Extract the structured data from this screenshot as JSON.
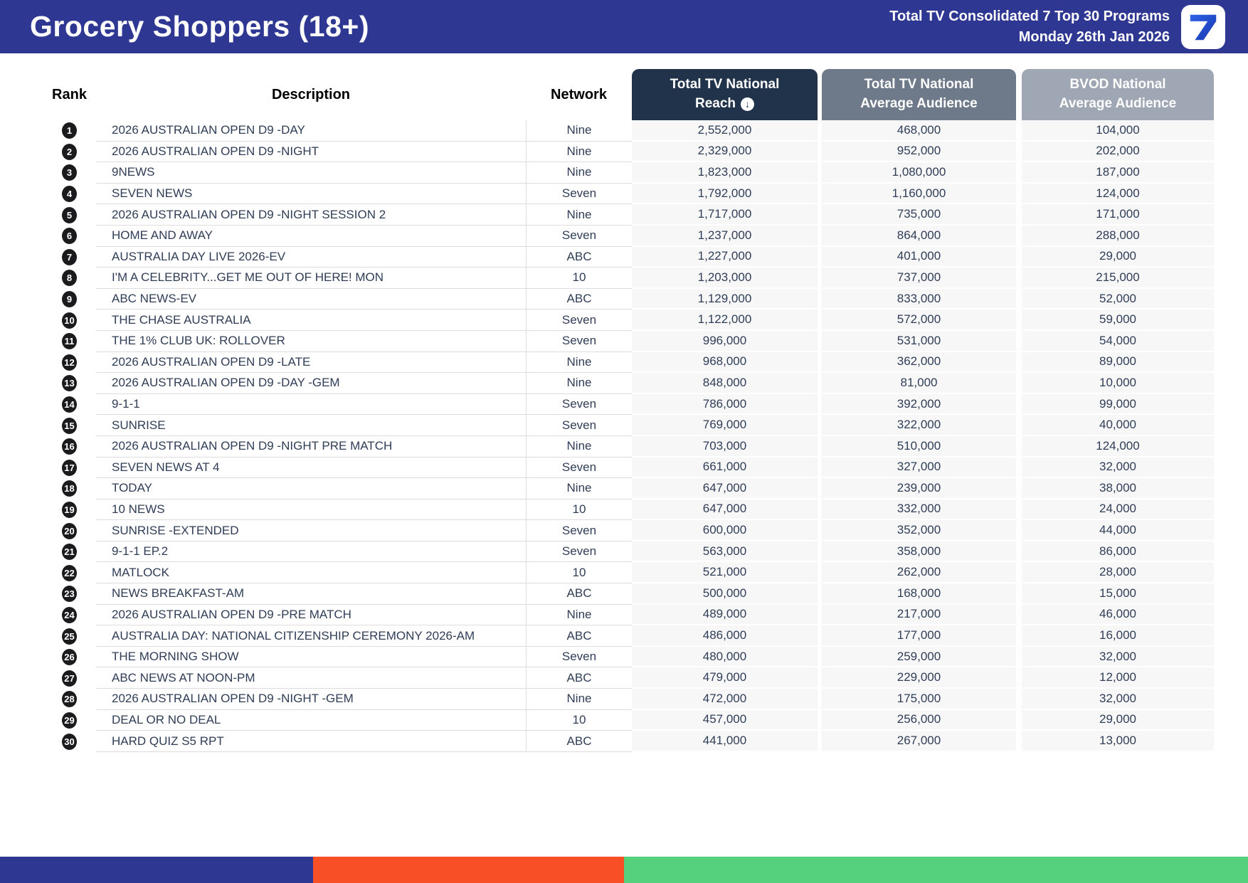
{
  "header": {
    "title": "Grocery Shoppers (18+)",
    "subtitle_line1": "Total TV Consolidated 7 Top 30 Programs",
    "subtitle_line2": "Monday 26th Jan 2026",
    "logo_glyph": "7"
  },
  "table": {
    "header": {
      "rank": "Rank",
      "description": "Description",
      "network": "Network",
      "reach_line1": "Total TV National",
      "reach_line2": "Reach",
      "reach_sort_icon_glyph": "↓",
      "avg_line1": "Total TV National",
      "avg_line2": "Average Audience",
      "bvod_line1": "BVOD National",
      "bvod_line2": "Average Audience"
    },
    "rows": [
      {
        "rank": "1",
        "description": "2026 AUSTRALIAN OPEN D9 -DAY",
        "network": "Nine",
        "reach": "2,552,000",
        "avg": "468,000",
        "bvod": "104,000"
      },
      {
        "rank": "2",
        "description": "2026 AUSTRALIAN OPEN D9 -NIGHT",
        "network": "Nine",
        "reach": "2,329,000",
        "avg": "952,000",
        "bvod": "202,000"
      },
      {
        "rank": "3",
        "description": "9NEWS",
        "network": "Nine",
        "reach": "1,823,000",
        "avg": "1,080,000",
        "bvod": "187,000"
      },
      {
        "rank": "4",
        "description": "SEVEN NEWS",
        "network": "Seven",
        "reach": "1,792,000",
        "avg": "1,160,000",
        "bvod": "124,000"
      },
      {
        "rank": "5",
        "description": "2026 AUSTRALIAN OPEN D9 -NIGHT SESSION 2",
        "network": "Nine",
        "reach": "1,717,000",
        "avg": "735,000",
        "bvod": "171,000"
      },
      {
        "rank": "6",
        "description": "HOME AND AWAY",
        "network": "Seven",
        "reach": "1,237,000",
        "avg": "864,000",
        "bvod": "288,000"
      },
      {
        "rank": "7",
        "description": "AUSTRALIA DAY LIVE 2026-EV",
        "network": "ABC",
        "reach": "1,227,000",
        "avg": "401,000",
        "bvod": "29,000"
      },
      {
        "rank": "8",
        "description": "I'M A CELEBRITY...GET ME OUT OF HERE! MON",
        "network": "10",
        "reach": "1,203,000",
        "avg": "737,000",
        "bvod": "215,000"
      },
      {
        "rank": "9",
        "description": "ABC NEWS-EV",
        "network": "ABC",
        "reach": "1,129,000",
        "avg": "833,000",
        "bvod": "52,000"
      },
      {
        "rank": "10",
        "description": "THE CHASE AUSTRALIA",
        "network": "Seven",
        "reach": "1,122,000",
        "avg": "572,000",
        "bvod": "59,000"
      },
      {
        "rank": "11",
        "description": "THE 1% CLUB UK: ROLLOVER",
        "network": "Seven",
        "reach": "996,000",
        "avg": "531,000",
        "bvod": "54,000"
      },
      {
        "rank": "12",
        "description": "2026 AUSTRALIAN OPEN D9 -LATE",
        "network": "Nine",
        "reach": "968,000",
        "avg": "362,000",
        "bvod": "89,000"
      },
      {
        "rank": "13",
        "description": "2026 AUSTRALIAN OPEN D9 -DAY -GEM",
        "network": "Nine",
        "reach": "848,000",
        "avg": "81,000",
        "bvod": "10,000"
      },
      {
        "rank": "14",
        "description": "9-1-1",
        "network": "Seven",
        "reach": "786,000",
        "avg": "392,000",
        "bvod": "99,000"
      },
      {
        "rank": "15",
        "description": "SUNRISE",
        "network": "Seven",
        "reach": "769,000",
        "avg": "322,000",
        "bvod": "40,000"
      },
      {
        "rank": "16",
        "description": "2026 AUSTRALIAN OPEN D9 -NIGHT PRE MATCH",
        "network": "Nine",
        "reach": "703,000",
        "avg": "510,000",
        "bvod": "124,000"
      },
      {
        "rank": "17",
        "description": "SEVEN NEWS AT 4",
        "network": "Seven",
        "reach": "661,000",
        "avg": "327,000",
        "bvod": "32,000"
      },
      {
        "rank": "18",
        "description": "TODAY",
        "network": "Nine",
        "reach": "647,000",
        "avg": "239,000",
        "bvod": "38,000"
      },
      {
        "rank": "19",
        "description": "10 NEWS",
        "network": "10",
        "reach": "647,000",
        "avg": "332,000",
        "bvod": "24,000"
      },
      {
        "rank": "20",
        "description": "SUNRISE -EXTENDED",
        "network": "Seven",
        "reach": "600,000",
        "avg": "352,000",
        "bvod": "44,000"
      },
      {
        "rank": "21",
        "description": "9-1-1 EP.2",
        "network": "Seven",
        "reach": "563,000",
        "avg": "358,000",
        "bvod": "86,000"
      },
      {
        "rank": "22",
        "description": "MATLOCK",
        "network": "10",
        "reach": "521,000",
        "avg": "262,000",
        "bvod": "28,000"
      },
      {
        "rank": "23",
        "description": "NEWS BREAKFAST-AM",
        "network": "ABC",
        "reach": "500,000",
        "avg": "168,000",
        "bvod": "15,000"
      },
      {
        "rank": "24",
        "description": "2026 AUSTRALIAN OPEN D9 -PRE MATCH",
        "network": "Nine",
        "reach": "489,000",
        "avg": "217,000",
        "bvod": "46,000"
      },
      {
        "rank": "25",
        "description": "AUSTRALIA DAY: NATIONAL CITIZENSHIP CEREMONY 2026-AM",
        "network": "ABC",
        "reach": "486,000",
        "avg": "177,000",
        "bvod": "16,000"
      },
      {
        "rank": "26",
        "description": "THE MORNING SHOW",
        "network": "Seven",
        "reach": "480,000",
        "avg": "259,000",
        "bvod": "32,000"
      },
      {
        "rank": "27",
        "description": "ABC NEWS AT NOON-PM",
        "network": "ABC",
        "reach": "479,000",
        "avg": "229,000",
        "bvod": "12,000"
      },
      {
        "rank": "28",
        "description": "2026 AUSTRALIAN OPEN D9 -NIGHT -GEM",
        "network": "Nine",
        "reach": "472,000",
        "avg": "175,000",
        "bvod": "32,000"
      },
      {
        "rank": "29",
        "description": "DEAL OR NO DEAL",
        "network": "10",
        "reach": "457,000",
        "avg": "256,000",
        "bvod": "29,000"
      },
      {
        "rank": "30",
        "description": "HARD QUIZ S5 RPT",
        "network": "ABC",
        "reach": "441,000",
        "avg": "267,000",
        "bvod": "13,000"
      }
    ]
  },
  "colors": {
    "banner_blue": "#2E3792",
    "reach_header": "#21334B",
    "avg_header": "#6E7A8A",
    "bvod_header": "#9EA7B3",
    "numeric_cell_bg": "#F7F7F8",
    "body_text": "#2F3D56",
    "rank_badge": "#1B1B1D"
  },
  "footer": {
    "segments": [
      {
        "name": "blue-segment",
        "color": "#2E3792",
        "width_pct": 25.1
      },
      {
        "name": "orange-segment",
        "color": "#F94F26",
        "width_pct": 24.9
      },
      {
        "name": "green-segment",
        "color": "#55D17E",
        "width_pct": 50.0
      }
    ]
  }
}
